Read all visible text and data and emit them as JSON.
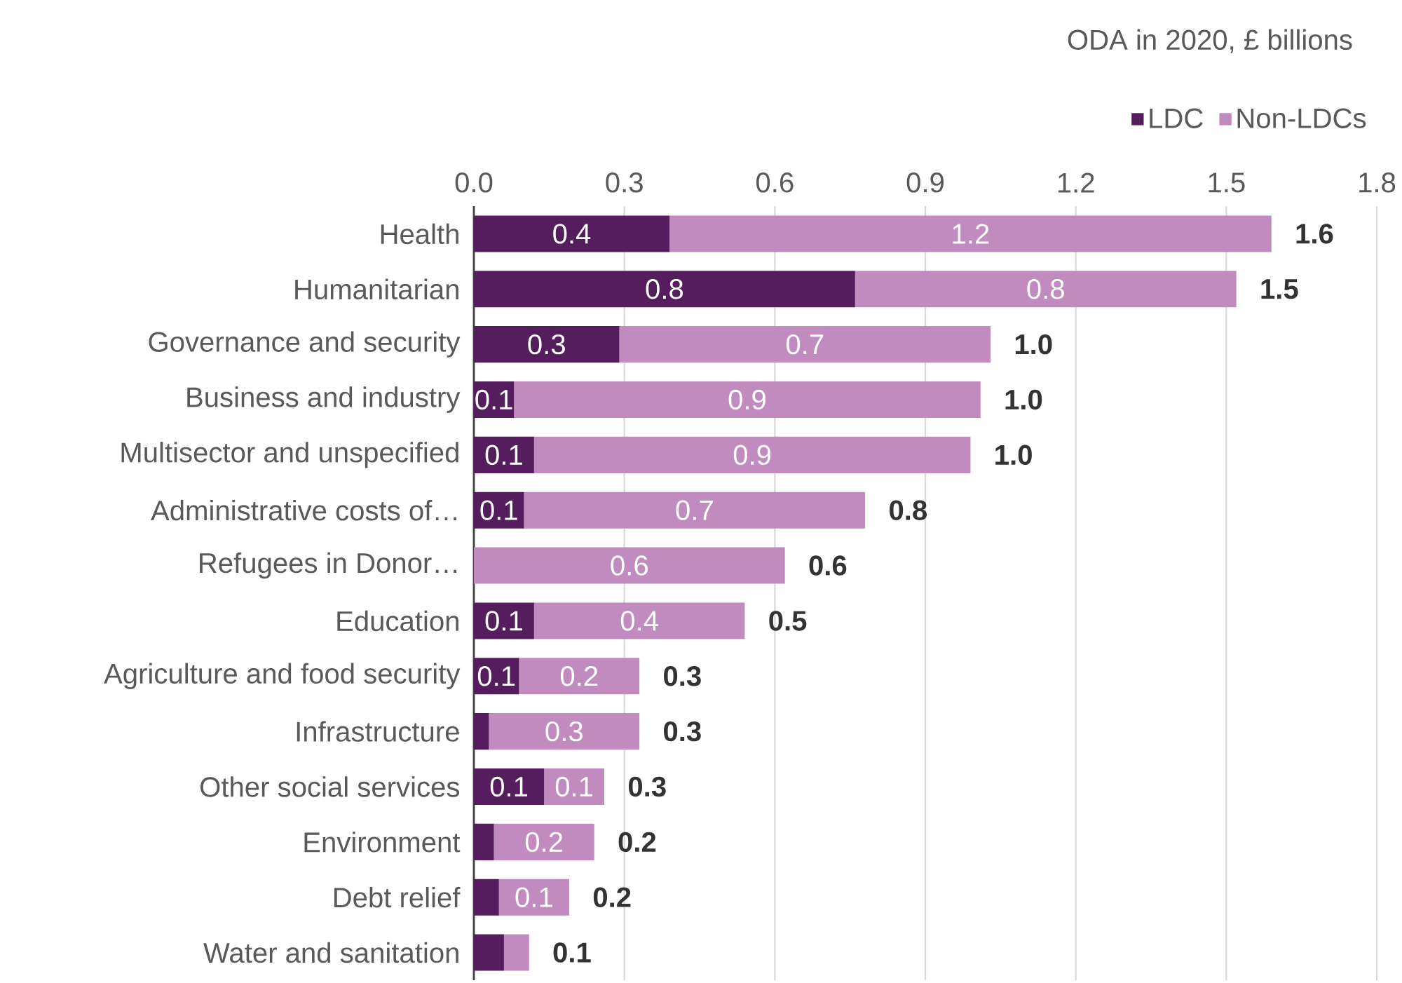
{
  "chart_data": {
    "type": "bar",
    "orientation": "horizontal",
    "stacked": true,
    "title": "ODA in 2020, £ billions",
    "categories": [
      "Health",
      "Humanitarian",
      "Governance and security",
      "Business and industry",
      "Multisector and unspecified",
      "Administrative costs of…",
      "Refugees in Donor…",
      "Education",
      "Agriculture and food security",
      "Infrastructure",
      "Other social services",
      "Environment",
      "Debt relief",
      "Water and sanitation"
    ],
    "series": [
      {
        "name": "LDC",
        "color": "#561d5e",
        "values": [
          0.39,
          0.76,
          0.29,
          0.08,
          0.12,
          0.1,
          0,
          0.12,
          0.09,
          0.03,
          0.14,
          0.04,
          0.05,
          0.06
        ],
        "value_labels": [
          "0.4",
          "0.8",
          "0.3",
          "0.1",
          "0.1",
          "0.1",
          null,
          "0.1",
          "0.1",
          null,
          "0.1",
          null,
          null,
          null
        ]
      },
      {
        "name": "Non-LDCs",
        "color": "#c28bbf",
        "values": [
          1.2,
          0.76,
          0.74,
          0.93,
          0.87,
          0.68,
          0.62,
          0.42,
          0.24,
          0.3,
          0.12,
          0.2,
          0.14,
          0.05
        ],
        "value_labels": [
          "1.2",
          "0.8",
          "0.7",
          "0.9",
          "0.9",
          "0.7",
          "0.6",
          "0.4",
          "0.2",
          "0.3",
          "0.1",
          "0.2",
          "0.1",
          null
        ]
      }
    ],
    "totals": [
      "1.6",
      "1.5",
      "1.0",
      "1.0",
      "1.0",
      "0.8",
      "0.6",
      "0.5",
      "0.3",
      "0.3",
      "0.3",
      "0.2",
      "0.2",
      "0.1"
    ],
    "xlim": [
      0,
      1.8
    ],
    "xticks": [
      {
        "value": 0,
        "label": "0.0"
      },
      0.3,
      0.6,
      0.9,
      1.2,
      1.5,
      1.8
    ],
    "grid": "x",
    "legend": "top right"
  }
}
